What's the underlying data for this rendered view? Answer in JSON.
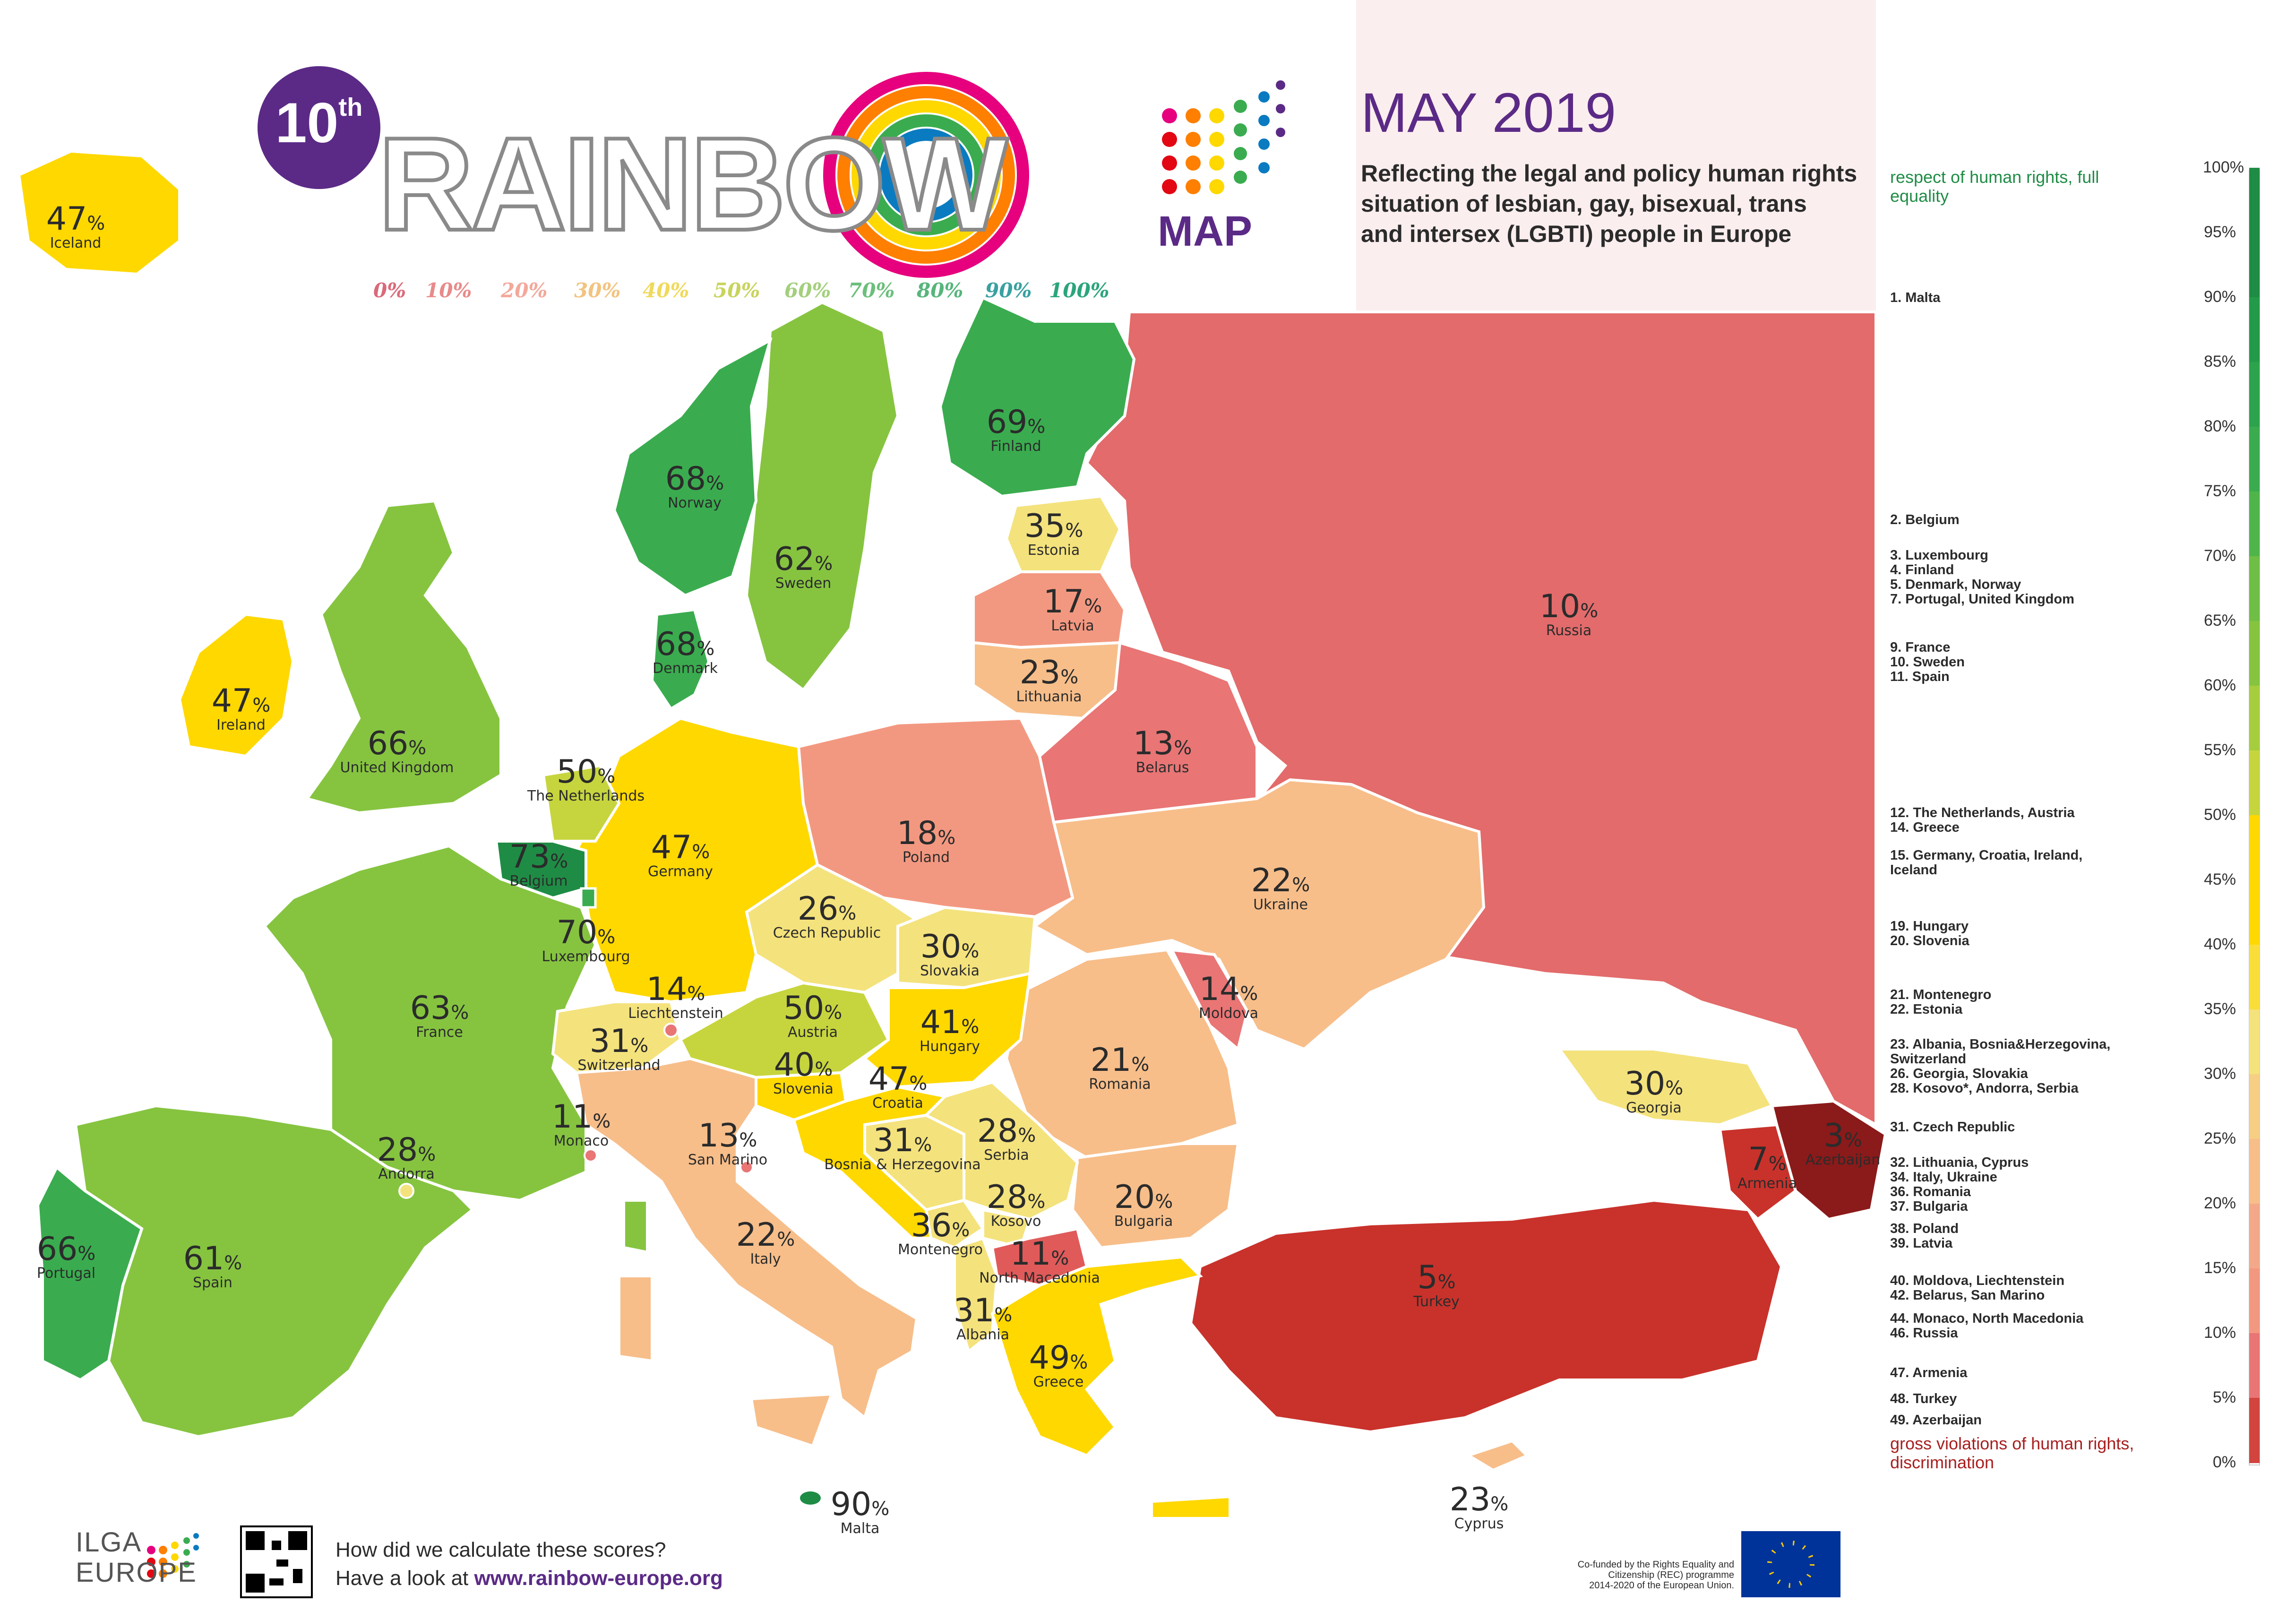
{
  "header": {
    "edition": "10",
    "edition_suffix": "th",
    "title": "RAINBOW",
    "title_sub": "MAP",
    "date": "MAY 2019",
    "subtitle_lines": [
      "Reflecting the legal and policy human rights",
      "situation of lesbian, gay, bisexual, trans",
      "and intersex (LGBTI) people in Europe"
    ],
    "color_scale_labels": [
      "0%",
      "10%",
      "20%",
      "30%",
      "40%",
      "50%",
      "60%",
      "70%",
      "80%",
      "90%",
      "100%"
    ]
  },
  "colors": {
    "scale": [
      "#8b1a1a",
      "#c8322b",
      "#e05a5a",
      "#e97575",
      "#f39880",
      "#f7be8a",
      "#f4e27c",
      "#ffd800",
      "#c6d53e",
      "#86c440",
      "#3aac4f",
      "#1f8c45"
    ],
    "brand_purple": "#5b2a86",
    "top_label_colors": [
      "#d96a7a",
      "#e88a8a",
      "#f3a89b",
      "#f2c37f",
      "#f0d95b",
      "#c8d45b",
      "#a3cf7c",
      "#6bbf7b",
      "#57b57c",
      "#3aa0a0",
      "#2aa57a"
    ]
  },
  "map": {
    "countries": [
      {
        "name": "Iceland",
        "pct": "47"
      },
      {
        "name": "Norway",
        "pct": "68"
      },
      {
        "name": "Sweden",
        "pct": "62"
      },
      {
        "name": "Finland",
        "pct": "69"
      },
      {
        "name": "Estonia",
        "pct": "35"
      },
      {
        "name": "Latvia",
        "pct": "17"
      },
      {
        "name": "Lithuania",
        "pct": "23"
      },
      {
        "name": "Russia",
        "pct": "10"
      },
      {
        "name": "Denmark",
        "pct": "68"
      },
      {
        "name": "Ireland",
        "pct": "47"
      },
      {
        "name": "United Kingdom",
        "pct": "66"
      },
      {
        "name": "The Netherlands",
        "pct": "50"
      },
      {
        "name": "Belgium",
        "pct": "73"
      },
      {
        "name": "Luxembourg",
        "pct": "70"
      },
      {
        "name": "Germany",
        "pct": "47"
      },
      {
        "name": "Poland",
        "pct": "18"
      },
      {
        "name": "Belarus",
        "pct": "13"
      },
      {
        "name": "Ukraine",
        "pct": "22"
      },
      {
        "name": "Czech Republic",
        "pct": "26"
      },
      {
        "name": "Slovakia",
        "pct": "30"
      },
      {
        "name": "Moldova",
        "pct": "14"
      },
      {
        "name": "France",
        "pct": "63"
      },
      {
        "name": "Liechtenstein",
        "pct": "14"
      },
      {
        "name": "Austria",
        "pct": "50"
      },
      {
        "name": "Hungary",
        "pct": "41"
      },
      {
        "name": "Switzerland",
        "pct": "31"
      },
      {
        "name": "Slovenia",
        "pct": "40"
      },
      {
        "name": "Croatia",
        "pct": "47"
      },
      {
        "name": "Romania",
        "pct": "21"
      },
      {
        "name": "Georgia",
        "pct": "30"
      },
      {
        "name": "Azerbaijan",
        "pct": "3"
      },
      {
        "name": "Armenia",
        "pct": "7"
      },
      {
        "name": "Monaco",
        "pct": "11"
      },
      {
        "name": "San Marino",
        "pct": "13"
      },
      {
        "name": "Bosnia & Herzegovina",
        "pct": "31"
      },
      {
        "name": "Serbia",
        "pct": "28"
      },
      {
        "name": "Andorra",
        "pct": "28"
      },
      {
        "name": "Kosovo",
        "pct": "28"
      },
      {
        "name": "Bulgaria",
        "pct": "20"
      },
      {
        "name": "Portugal",
        "pct": "66"
      },
      {
        "name": "Spain",
        "pct": "61"
      },
      {
        "name": "Italy",
        "pct": "22"
      },
      {
        "name": "Montenegro",
        "pct": "36"
      },
      {
        "name": "North Macedonia",
        "pct": "11"
      },
      {
        "name": "Turkey",
        "pct": "5"
      },
      {
        "name": "Albania",
        "pct": "31"
      },
      {
        "name": "Greece",
        "pct": "49"
      },
      {
        "name": "Malta",
        "pct": "90"
      },
      {
        "name": "Cyprus",
        "pct": "23"
      }
    ]
  },
  "legend": {
    "top_label": "respect of human rights, full equality",
    "bottom_label": "gross violations of human rights, discrimination",
    "rankings": [
      [
        "1. Malta"
      ],
      [
        "2. Belgium"
      ],
      [
        "3. Luxembourg",
        "4. Finland",
        "5. Denmark, Norway",
        "7. Portugal, United Kingdom"
      ],
      [
        "9. France",
        "10. Sweden",
        "11. Spain"
      ],
      [
        "12. The Netherlands, Austria",
        "14. Greece"
      ],
      [
        "15. Germany, Croatia, Ireland,",
        "Iceland"
      ],
      [
        "19. Hungary",
        "20. Slovenia"
      ],
      [
        "21. Montenegro",
        "22. Estonia"
      ],
      [
        "23. Albania, Bosnia&Herzegovina,",
        "Switzerland",
        "26. Georgia, Slovakia",
        "28. Kosovo*, Andorra, Serbia"
      ],
      [
        "31. Czech Republic"
      ],
      [
        "32. Lithuania, Cyprus",
        "34. Italy, Ukraine",
        "36. Romania",
        "37. Bulgaria"
      ],
      [
        "38. Poland",
        "39. Latvia"
      ],
      [
        "40. Moldova, Liechtenstein",
        "42. Belarus, San Marino"
      ],
      [
        "44. Monaco, North Macedonia",
        "46. Russia"
      ],
      [
        "47. Armenia"
      ],
      [
        "48. Turkey"
      ],
      [
        "49. Azerbaijan"
      ]
    ],
    "scale_ticks": [
      "100%",
      "95%",
      "90%",
      "85%",
      "80%",
      "75%",
      "70%",
      "65%",
      "60%",
      "55%",
      "50%",
      "45%",
      "40%",
      "35%",
      "30%",
      "25%",
      "20%",
      "15%",
      "10%",
      "5%",
      "0%"
    ]
  },
  "footer": {
    "org_line1": "ILGA",
    "org_line2": "EUROPE",
    "calc_line1": "How did we calculate these scores?",
    "calc_line2_prefix": "Have a look at ",
    "calc_link": "www.rainbow-europe.org",
    "cofund_lines": [
      "Co-funded by the Rights Equality and",
      "Citizenship (REC) programme",
      "2014-2020 of the European Union."
    ]
  }
}
